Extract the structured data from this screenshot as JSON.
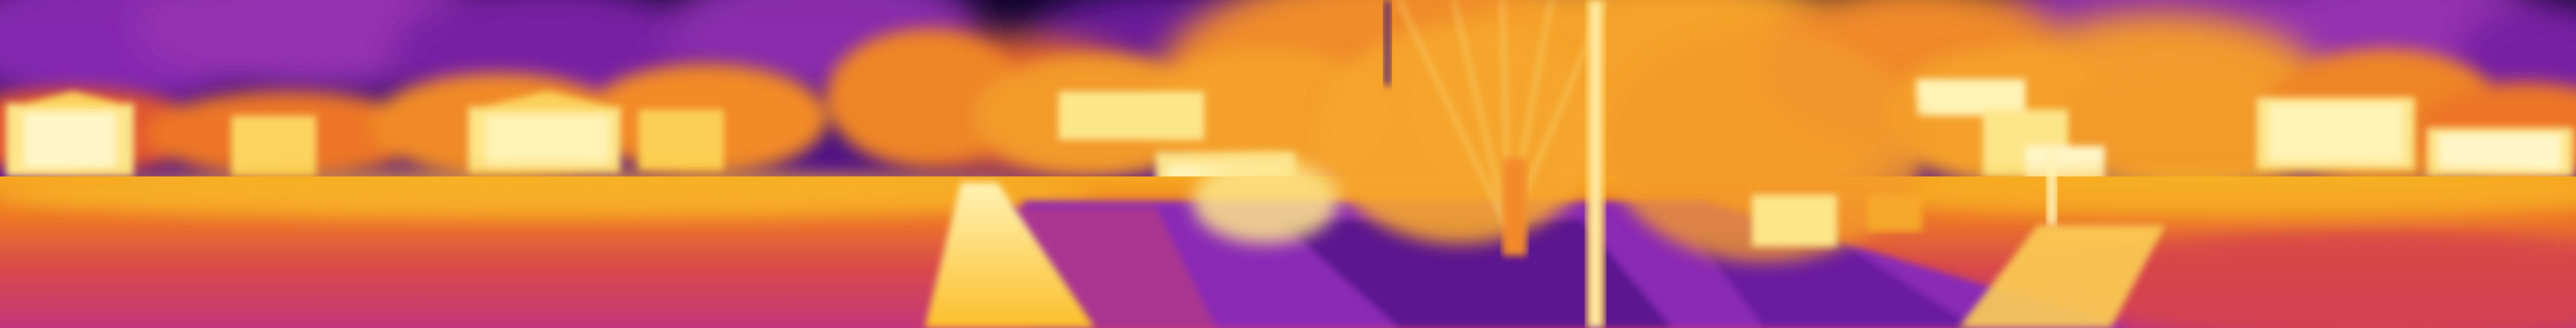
{
  "image": {
    "kind": "thermal-panorama",
    "palette": "ironbow",
    "palette_colors": {
      "cold": "#12062e",
      "cool": "#3a0f7a",
      "mid_purple": "#8a2bb5",
      "magenta": "#c0367e",
      "warm": "#e0503f",
      "hot": "#f28a1e",
      "hotter": "#fbbf2a",
      "hottest": "#fff6c8"
    },
    "elements": [
      "sky",
      "clouds",
      "tree-line",
      "houses",
      "grass-field",
      "footpath",
      "paved-road",
      "light-pole",
      "tree-trunk",
      "fountain-spray",
      "lamp-post",
      "park-bench"
    ]
  }
}
